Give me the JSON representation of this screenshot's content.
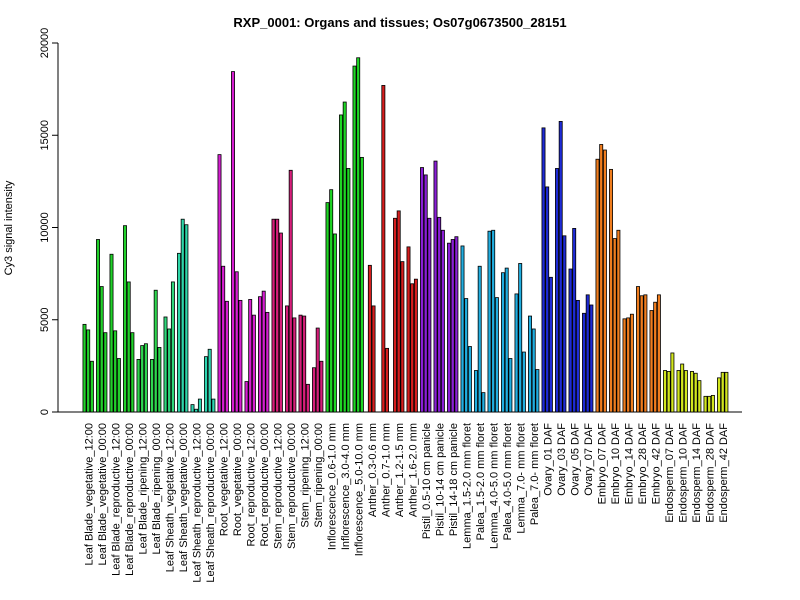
{
  "chart_data": {
    "type": "bar",
    "title": "RXP_0001: Organs and tissues; Os07g0673500_28151",
    "ylabel": "Cy3 signal intensity",
    "xlabel": "",
    "ylim": [
      0,
      20000
    ],
    "yticks": [
      0,
      5000,
      10000,
      15000,
      20000
    ],
    "tick_labels": [
      "0",
      "5000",
      "10000",
      "15000",
      "20000"
    ],
    "grid": false,
    "groups": [
      {
        "label": "Leaf Blade_vegetative_12:00",
        "color": "#21d12a",
        "values": [
          4750,
          4450,
          2750
        ]
      },
      {
        "label": "Leaf Blade_vegetative_00:00",
        "color": "#21d12a",
        "values": [
          9350,
          6800,
          4300
        ]
      },
      {
        "label": "Leaf Blade_reproductive_12:00",
        "color": "#21d12a",
        "values": [
          8550,
          4400,
          2900
        ]
      },
      {
        "label": "Leaf Blade_reproductive_00:00",
        "color": "#21d12a",
        "values": [
          10100,
          7050,
          4300
        ]
      },
      {
        "label": "Leaf Blade_ripening_12:00",
        "color": "#2ed64e",
        "values": [
          2850,
          3600,
          3700
        ]
      },
      {
        "label": "Leaf Blade_ripening_00:00",
        "color": "#2ed64e",
        "values": [
          2850,
          6600,
          3500
        ]
      },
      {
        "label": "Leaf Sheath_vegetative_12:00",
        "color": "#2ed67a",
        "values": [
          5150,
          4500,
          7050
        ]
      },
      {
        "label": "Leaf Sheath_vegetative_00:00",
        "color": "#2ed6a8",
        "values": [
          8600,
          10450,
          10150
        ]
      },
      {
        "label": "Leaf Sheath_reproductive_12:00",
        "color": "#2ed6b2",
        "values": [
          400,
          150,
          700
        ]
      },
      {
        "label": "Leaf Sheath_reproductive_00:00",
        "color": "#2ed6b2",
        "values": [
          3000,
          3400,
          700
        ]
      },
      {
        "label": "Root_vegetative_12:00",
        "color": "#d61ed1",
        "values": [
          13950,
          7900,
          6000
        ]
      },
      {
        "label": "Root_vegetative_00:00",
        "color": "#d61ed1",
        "values": [
          18450,
          7600,
          6050
        ]
      },
      {
        "label": "Root_reproductive_12:00",
        "color": "#d61ed1",
        "values": [
          1650,
          6100,
          5250
        ]
      },
      {
        "label": "Root_reproductive_00:00",
        "color": "#d61ed1",
        "values": [
          6250,
          6550,
          5400
        ]
      },
      {
        "label": "Stem_reproductive_12:00",
        "color": "#d61e7a",
        "values": [
          10450,
          10450,
          9700
        ]
      },
      {
        "label": "Stem_reproductive_00:00",
        "color": "#d61e7a",
        "values": [
          5750,
          13100,
          5100
        ]
      },
      {
        "label": "Stem_ripening_12:00",
        "color": "#d61e7a",
        "values": [
          5250,
          5200,
          1500
        ]
      },
      {
        "label": "Stem_ripening_00:00",
        "color": "#d61e7a",
        "values": [
          2400,
          4550,
          2750
        ]
      },
      {
        "label": "Inflorescence_0.6-1.0 mm",
        "color": "#1ed624",
        "values": [
          11350,
          12050,
          9650
        ]
      },
      {
        "label": "Inflorescence_3.0-4.0 mm",
        "color": "#1ed624",
        "values": [
          16100,
          16800,
          13200
        ]
      },
      {
        "label": "Inflorescence_5.0-10.0 mm",
        "color": "#1ed624",
        "values": [
          18750,
          19200,
          13800
        ]
      },
      {
        "label": "Anther_0.3-0.6 mm",
        "color": "#d61e1e",
        "values": [
          7950,
          5750
        ]
      },
      {
        "label": "Anther_0.7-1.0 mm",
        "color": "#d61e1e",
        "values": [
          17700,
          3450
        ]
      },
      {
        "label": "Anther_1.2-1.5 mm",
        "color": "#d61e1e",
        "values": [
          10500,
          10900,
          8150
        ]
      },
      {
        "label": "Anther_1.6-2.0 mm",
        "color": "#d61e1e",
        "values": [
          8950,
          6950,
          7200
        ]
      },
      {
        "label": "Pistil_0.5-10 cm panicle",
        "color": "#8a1ed6",
        "values": [
          13250,
          12850,
          10500
        ]
      },
      {
        "label": "Pistil_10-14 cm panicle",
        "color": "#8a1ed6",
        "values": [
          13600,
          10550,
          9850
        ]
      },
      {
        "label": "Pistil_14-18 cm panicle",
        "color": "#8a1ed6",
        "values": [
          9150,
          9350,
          9500
        ]
      },
      {
        "label": "Lemma_1.5-2.0 mm floret",
        "color": "#21aee0",
        "values": [
          9000,
          6150,
          3550
        ]
      },
      {
        "label": "Palea_1.5-2.0 mm floret",
        "color": "#21aee0",
        "values": [
          2250,
          7900,
          1050
        ]
      },
      {
        "label": "Lemma_4.0-5.0 mm floret",
        "color": "#21aee0",
        "values": [
          9800,
          9850,
          6200
        ]
      },
      {
        "label": "Palea_4.0-5.0 mm floret",
        "color": "#21aee0",
        "values": [
          7550,
          7800,
          2900
        ]
      },
      {
        "label": "Lemma_7.0- mm floret",
        "color": "#21aee0",
        "values": [
          6400,
          8050,
          3250
        ]
      },
      {
        "label": "Palea_7.0- mm floret",
        "color": "#21aee0",
        "values": [
          5200,
          4500,
          2300
        ]
      },
      {
        "label": "Ovary_01 DAF",
        "color": "#1e2bd6",
        "values": [
          15400,
          12200,
          7300
        ]
      },
      {
        "label": "Ovary_03 DAF",
        "color": "#1e2bd6",
        "values": [
          13200,
          15750,
          9550
        ]
      },
      {
        "label": "Ovary_05 DAF",
        "color": "#1e2bd6",
        "values": [
          7750,
          9950,
          6050
        ]
      },
      {
        "label": "Ovary_07 DAF",
        "color": "#1e2bd6",
        "values": [
          5350,
          6350,
          5800
        ]
      },
      {
        "label": "Embryo_07 DAF",
        "color": "#f07d1e",
        "values": [
          13700,
          14500,
          14200
        ]
      },
      {
        "label": "Embryo_10 DAF",
        "color": "#f07d1e",
        "values": [
          13150,
          9400,
          9850
        ]
      },
      {
        "label": "Embryo_14 DAF",
        "color": "#f07d1e",
        "values": [
          5050,
          5100,
          5300
        ]
      },
      {
        "label": "Embryo_28 DAF",
        "color": "#f07d1e",
        "values": [
          6800,
          6300,
          6350
        ]
      },
      {
        "label": "Embryo_42 DAF",
        "color": "#f07d1e",
        "values": [
          5500,
          5950,
          6350
        ]
      },
      {
        "label": "Endosperm_07 DAF",
        "color": "#d2e61e",
        "values": [
          2250,
          2200,
          3200
        ]
      },
      {
        "label": "Endosperm_10 DAF",
        "color": "#d2e61e",
        "values": [
          2250,
          2600,
          2250
        ]
      },
      {
        "label": "Endosperm_14 DAF",
        "color": "#d2e61e",
        "values": [
          2200,
          2100,
          1700
        ]
      },
      {
        "label": "Endosperm_28 DAF",
        "color": "#d2e61e",
        "values": [
          850,
          850,
          900
        ]
      },
      {
        "label": "Endosperm_42 DAF",
        "color": "#d2e61e",
        "values": [
          1850,
          2150,
          2150
        ]
      }
    ]
  }
}
